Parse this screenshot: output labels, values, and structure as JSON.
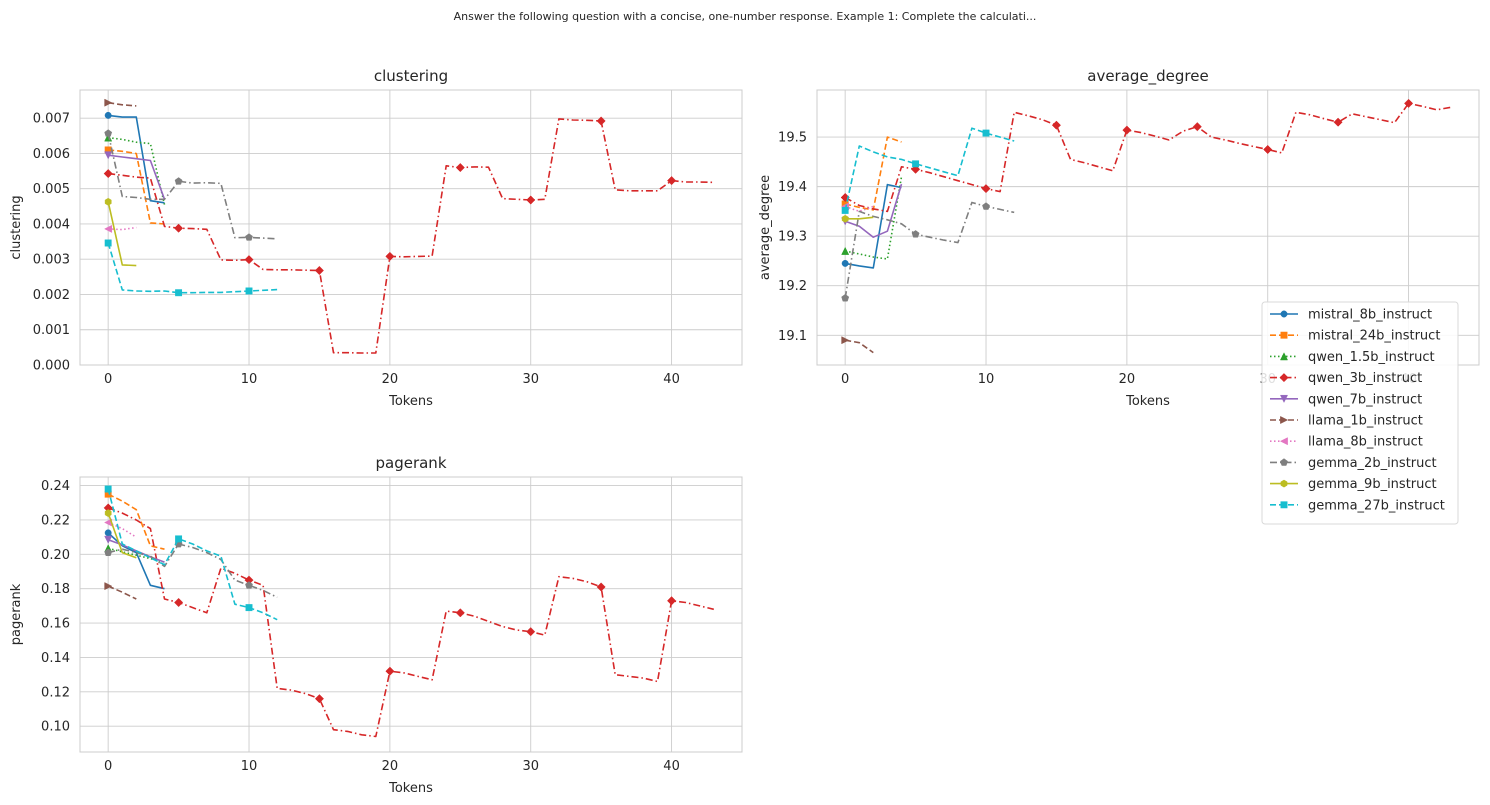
{
  "suptitle": "Answer the following question with a concise, one-number response. Example 1: Complete the calculati...",
  "colors": {
    "mistral_8b_instruct": "#1f77b4",
    "mistral_24b_instruct": "#ff7f0e",
    "qwen_1.5b_instruct": "#2ca02c",
    "qwen_3b_instruct": "#d62728",
    "qwen_7b_instruct": "#9467bd",
    "llama_1b_instruct": "#8c564b",
    "llama_8b_instruct": "#e377c2",
    "gemma_2b_instruct": "#7f7f7f",
    "gemma_9b_instruct": "#bcbd22",
    "gemma_27b_instruct": "#17becf"
  },
  "legend": {
    "placement": "center-right",
    "entries": [
      {
        "name": "mistral_8b_instruct",
        "marker": "circle",
        "dash": "solid"
      },
      {
        "name": "mistral_24b_instruct",
        "marker": "square",
        "dash": "dashed"
      },
      {
        "name": "qwen_1.5b_instruct",
        "marker": "triangle-up",
        "dash": "dotted"
      },
      {
        "name": "qwen_3b_instruct",
        "marker": "diamond",
        "dash": "dashdot"
      },
      {
        "name": "qwen_7b_instruct",
        "marker": "triangle-down",
        "dash": "solid"
      },
      {
        "name": "llama_1b_instruct",
        "marker": "triangle-right",
        "dash": "dashed"
      },
      {
        "name": "llama_8b_instruct",
        "marker": "triangle-left",
        "dash": "dotted"
      },
      {
        "name": "gemma_2b_instruct",
        "marker": "pentagon",
        "dash": "dashdot"
      },
      {
        "name": "gemma_9b_instruct",
        "marker": "hexagon",
        "dash": "solid"
      },
      {
        "name": "gemma_27b_instruct",
        "marker": "square",
        "dash": "dashed"
      }
    ]
  },
  "chart_data": [
    {
      "type": "line",
      "title": "clustering",
      "xlabel": "Tokens",
      "ylabel": "clustering",
      "xlim": [
        -2,
        45
      ],
      "ylim": [
        0,
        0.0078
      ],
      "xticks": [
        0,
        10,
        20,
        30,
        40
      ],
      "yticks": [
        0.0,
        0.001,
        0.002,
        0.003,
        0.004,
        0.005,
        0.006,
        0.007
      ],
      "ytick_labels": [
        "0.000",
        "0.001",
        "0.002",
        "0.003",
        "0.004",
        "0.005",
        "0.006",
        "0.007"
      ],
      "grid": true,
      "series": [
        {
          "name": "mistral_8b_instruct",
          "x": [
            0,
            1,
            2,
            3,
            4
          ],
          "y": [
            0.00708,
            0.00703,
            0.00703,
            0.00466,
            0.0046
          ]
        },
        {
          "name": "mistral_24b_instruct",
          "x": [
            0,
            1,
            2,
            3,
            4
          ],
          "y": [
            0.0061,
            0.00606,
            0.006,
            0.00403,
            0.004
          ]
        },
        {
          "name": "qwen_1.5b_instruct",
          "x": [
            0,
            1,
            2,
            3,
            4
          ],
          "y": [
            0.00645,
            0.0064,
            0.00632,
            0.00628,
            0.00455
          ]
        },
        {
          "name": "qwen_3b_instruct",
          "x": [
            0,
            1,
            2,
            3,
            4,
            5,
            6,
            7,
            8,
            9,
            10,
            11,
            12,
            13,
            14,
            15,
            16,
            17,
            18,
            19,
            20,
            21,
            22,
            23,
            24,
            25,
            26,
            27,
            28,
            29,
            30,
            31,
            32,
            33,
            34,
            35,
            36,
            37,
            38,
            39,
            40,
            41,
            42,
            43
          ],
          "y": [
            0.00543,
            0.00538,
            0.00533,
            0.0053,
            0.00393,
            0.00388,
            0.00387,
            0.00385,
            0.00298,
            0.00297,
            0.00299,
            0.00271,
            0.0027,
            0.0027,
            0.00269,
            0.00268,
            0.00035,
            0.00035,
            0.00034,
            0.00034,
            0.00308,
            0.00307,
            0.00308,
            0.00309,
            0.00565,
            0.0056,
            0.00562,
            0.00561,
            0.00472,
            0.0047,
            0.00468,
            0.0047,
            0.00698,
            0.00695,
            0.00694,
            0.00692,
            0.00497,
            0.00494,
            0.00494,
            0.00494,
            0.00523,
            0.00519,
            0.00519,
            0.00518
          ]
        },
        {
          "name": "qwen_7b_instruct",
          "x": [
            0,
            1,
            2,
            3,
            4
          ],
          "y": [
            0.00595,
            0.0059,
            0.00585,
            0.0058,
            0.0047
          ]
        },
        {
          "name": "llama_1b_instruct",
          "x": [
            0,
            1,
            2
          ],
          "y": [
            0.00744,
            0.00738,
            0.00735
          ]
        },
        {
          "name": "llama_8b_instruct",
          "x": [
            0,
            1,
            2
          ],
          "y": [
            0.00386,
            0.00384,
            0.0039
          ]
        },
        {
          "name": "gemma_2b_instruct",
          "x": [
            0,
            1,
            2,
            3,
            4,
            5,
            6,
            7,
            8,
            9,
            10,
            11,
            12
          ],
          "y": [
            0.00657,
            0.00478,
            0.00475,
            0.0047,
            0.0047,
            0.00521,
            0.00516,
            0.00517,
            0.00515,
            0.00361,
            0.00362,
            0.0036,
            0.00358
          ]
        },
        {
          "name": "gemma_9b_instruct",
          "x": [
            0,
            1,
            2
          ],
          "y": [
            0.00463,
            0.00284,
            0.00282
          ]
        },
        {
          "name": "gemma_27b_instruct",
          "x": [
            0,
            1,
            2,
            3,
            4,
            5,
            6,
            7,
            8,
            9,
            10,
            11,
            12
          ],
          "y": [
            0.00346,
            0.00213,
            0.0021,
            0.00209,
            0.0021,
            0.00205,
            0.00205,
            0.00206,
            0.00206,
            0.00208,
            0.0021,
            0.00212,
            0.00214
          ]
        }
      ]
    },
    {
      "type": "line",
      "title": "average_degree",
      "xlabel": "Tokens",
      "ylabel": "average_degree",
      "xlim": [
        -2,
        45
      ],
      "ylim": [
        19.04,
        19.595
      ],
      "xticks": [
        0,
        10,
        20,
        30,
        40
      ],
      "yticks": [
        19.1,
        19.2,
        19.3,
        19.4,
        19.5
      ],
      "ytick_labels": [
        "19.1",
        "19.2",
        "19.3",
        "19.4",
        "19.5"
      ],
      "grid": true,
      "series": [
        {
          "name": "mistral_8b_instruct",
          "x": [
            0,
            1,
            2,
            3,
            4
          ],
          "y": [
            19.245,
            19.24,
            19.236,
            19.404,
            19.398
          ]
        },
        {
          "name": "mistral_24b_instruct",
          "x": [
            0,
            1,
            2,
            3,
            4
          ],
          "y": [
            19.365,
            19.358,
            19.353,
            19.5,
            19.49
          ]
        },
        {
          "name": "qwen_1.5b_instruct",
          "x": [
            0,
            1,
            2,
            3,
            4
          ],
          "y": [
            19.27,
            19.264,
            19.258,
            19.254,
            19.42
          ]
        },
        {
          "name": "qwen_3b_instruct",
          "x": [
            0,
            1,
            2,
            3,
            4,
            5,
            6,
            7,
            8,
            9,
            10,
            11,
            12,
            13,
            14,
            15,
            16,
            17,
            18,
            19,
            20,
            21,
            22,
            23,
            24,
            25,
            26,
            27,
            28,
            29,
            30,
            31,
            32,
            33,
            34,
            35,
            36,
            37,
            38,
            39,
            40,
            41,
            42,
            43
          ],
          "y": [
            19.378,
            19.362,
            19.355,
            19.35,
            19.44,
            19.435,
            19.428,
            19.42,
            19.412,
            19.404,
            19.396,
            19.39,
            19.55,
            19.543,
            19.535,
            19.524,
            19.455,
            19.448,
            19.44,
            19.432,
            19.514,
            19.509,
            19.502,
            19.494,
            19.512,
            19.521,
            19.5,
            19.494,
            19.487,
            19.481,
            19.475,
            19.468,
            19.55,
            19.545,
            19.537,
            19.53,
            19.547,
            19.541,
            19.535,
            19.529,
            19.568,
            19.562,
            19.555,
            19.56
          ]
        },
        {
          "name": "qwen_7b_instruct",
          "x": [
            0,
            1,
            2,
            3,
            4
          ],
          "y": [
            19.33,
            19.32,
            19.298,
            19.31,
            19.405
          ]
        },
        {
          "name": "llama_1b_instruct",
          "x": [
            0,
            1,
            2
          ],
          "y": [
            19.09,
            19.085,
            19.065
          ]
        },
        {
          "name": "llama_8b_instruct",
          "x": [
            0,
            1,
            2
          ],
          "y": [
            19.36,
            19.35,
            19.36
          ]
        },
        {
          "name": "gemma_2b_instruct",
          "x": [
            0,
            1,
            2,
            3,
            4,
            5,
            6,
            7,
            8,
            9,
            10,
            11,
            12
          ],
          "y": [
            19.175,
            19.35,
            19.34,
            19.333,
            19.325,
            19.304,
            19.298,
            19.292,
            19.287,
            19.368,
            19.36,
            19.354,
            19.348
          ]
        },
        {
          "name": "gemma_9b_instruct",
          "x": [
            0,
            1,
            2
          ],
          "y": [
            19.335,
            19.335,
            19.338
          ]
        },
        {
          "name": "gemma_27b_instruct",
          "x": [
            0,
            1,
            2,
            3,
            4,
            5,
            6,
            7,
            8,
            9,
            10,
            11,
            12
          ],
          "y": [
            19.352,
            19.482,
            19.47,
            19.46,
            19.455,
            19.446,
            19.438,
            19.43,
            19.422,
            19.518,
            19.508,
            19.5,
            19.492
          ]
        }
      ]
    },
    {
      "type": "line",
      "title": "pagerank",
      "xlabel": "Tokens",
      "ylabel": "pagerank",
      "xlim": [
        -2,
        45
      ],
      "ylim": [
        0.085,
        0.245
      ],
      "xticks": [
        0,
        10,
        20,
        30,
        40
      ],
      "yticks": [
        0.1,
        0.12,
        0.14,
        0.16,
        0.18,
        0.2,
        0.22,
        0.24
      ],
      "ytick_labels": [
        "0.10",
        "0.12",
        "0.14",
        "0.16",
        "0.18",
        "0.20",
        "0.22",
        "0.24"
      ],
      "grid": true,
      "series": [
        {
          "name": "mistral_8b_instruct",
          "x": [
            0,
            1,
            2,
            3,
            4
          ],
          "y": [
            0.2125,
            0.205,
            0.201,
            0.182,
            0.18
          ]
        },
        {
          "name": "mistral_24b_instruct",
          "x": [
            0,
            1,
            2,
            3,
            4
          ],
          "y": [
            0.235,
            0.231,
            0.226,
            0.205,
            0.203
          ]
        },
        {
          "name": "qwen_1.5b_instruct",
          "x": [
            0,
            1,
            2,
            3,
            4
          ],
          "y": [
            0.2035,
            0.2015,
            0.1995,
            0.1975,
            0.1955
          ]
        },
        {
          "name": "qwen_3b_instruct",
          "x": [
            0,
            1,
            2,
            3,
            4,
            5,
            6,
            7,
            8,
            9,
            10,
            11,
            12,
            13,
            14,
            15,
            16,
            17,
            18,
            19,
            20,
            21,
            22,
            23,
            24,
            25,
            26,
            27,
            28,
            29,
            30,
            31,
            32,
            33,
            34,
            35,
            36,
            37,
            38,
            39,
            40,
            41,
            42,
            43
          ],
          "y": [
            0.227,
            0.224,
            0.22,
            0.215,
            0.174,
            0.172,
            0.169,
            0.166,
            0.192,
            0.189,
            0.185,
            0.182,
            0.122,
            0.121,
            0.119,
            0.116,
            0.098,
            0.097,
            0.095,
            0.094,
            0.132,
            0.131,
            0.129,
            0.127,
            0.167,
            0.166,
            0.164,
            0.161,
            0.158,
            0.156,
            0.155,
            0.153,
            0.187,
            0.186,
            0.184,
            0.181,
            0.13,
            0.129,
            0.128,
            0.126,
            0.173,
            0.172,
            0.17,
            0.168
          ]
        },
        {
          "name": "qwen_7b_instruct",
          "x": [
            0,
            1,
            2,
            3,
            4
          ],
          "y": [
            0.2085,
            0.2055,
            0.202,
            0.1985,
            0.1955
          ]
        },
        {
          "name": "llama_1b_instruct",
          "x": [
            0,
            1,
            2
          ],
          "y": [
            0.1815,
            0.178,
            0.174
          ]
        },
        {
          "name": "llama_8b_instruct",
          "x": [
            0,
            1,
            2
          ],
          "y": [
            0.2185,
            0.215,
            0.21
          ]
        },
        {
          "name": "gemma_2b_instruct",
          "x": [
            0,
            1,
            2,
            3,
            4,
            5,
            6,
            7,
            8,
            9,
            10,
            11,
            12
          ],
          "y": [
            0.201,
            0.203,
            0.201,
            0.199,
            0.193,
            0.206,
            0.204,
            0.201,
            0.197,
            0.185,
            0.182,
            0.179,
            0.175
          ]
        },
        {
          "name": "gemma_9b_instruct",
          "x": [
            0,
            1,
            2
          ],
          "y": [
            0.224,
            0.201,
            0.198
          ]
        },
        {
          "name": "gemma_27b_instruct",
          "x": [
            0,
            1,
            2,
            3,
            4,
            5,
            6,
            7,
            8,
            9,
            10,
            11,
            12
          ],
          "y": [
            0.238,
            0.206,
            0.202,
            0.198,
            0.194,
            0.209,
            0.206,
            0.202,
            0.199,
            0.171,
            0.169,
            0.166,
            0.162
          ]
        }
      ]
    }
  ]
}
